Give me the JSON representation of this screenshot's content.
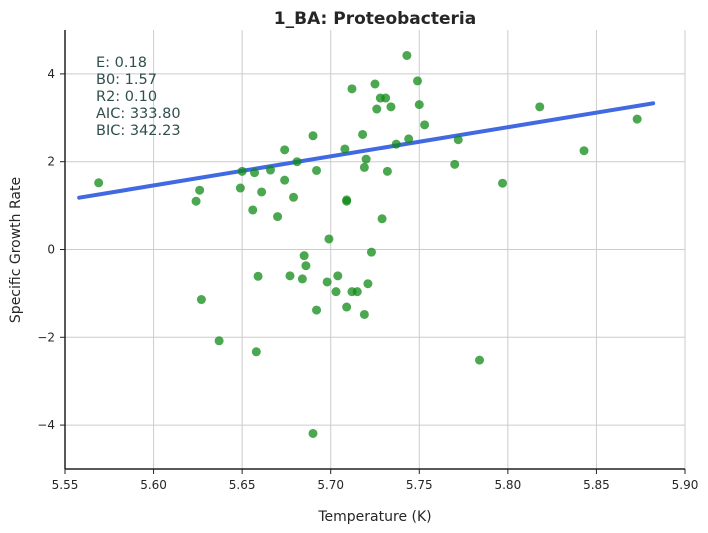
{
  "chart_data": {
    "type": "scatter",
    "title": "1_BA: Proteobacteria",
    "xlabel": "Temperature (K)",
    "ylabel": "Specific Growth Rate",
    "xlim": [
      5.55,
      5.9
    ],
    "ylim": [
      -5,
      5
    ],
    "x_ticks": [
      "5.55",
      "5.60",
      "5.65",
      "5.70",
      "5.75",
      "5.80",
      "5.85",
      "5.90"
    ],
    "y_ticks": [
      "−4",
      "−2",
      "0",
      "2",
      "4"
    ],
    "grid": true,
    "point_color": "#0f8a16",
    "fit_color": "#4169e1",
    "fit_line": {
      "x": [
        5.558,
        5.882
      ],
      "y": [
        1.18,
        3.33
      ]
    },
    "stats": [
      "E:  0.18",
      "B0:  1.57",
      "R2:  0.10",
      "AIC: 333.80",
      "BIC: 342.23"
    ],
    "points": [
      [
        5.569,
        1.52
      ],
      [
        5.624,
        1.1
      ],
      [
        5.626,
        1.35
      ],
      [
        5.627,
        -1.14
      ],
      [
        5.637,
        -2.08
      ],
      [
        5.649,
        1.4
      ],
      [
        5.65,
        1.78
      ],
      [
        5.656,
        0.9
      ],
      [
        5.657,
        1.75
      ],
      [
        5.658,
        -2.33
      ],
      [
        5.659,
        -0.61
      ],
      [
        5.661,
        1.31
      ],
      [
        5.666,
        1.81
      ],
      [
        5.67,
        0.75
      ],
      [
        5.674,
        2.27
      ],
      [
        5.674,
        1.58
      ],
      [
        5.677,
        -0.6
      ],
      [
        5.679,
        1.19
      ],
      [
        5.681,
        2.0
      ],
      [
        5.684,
        -0.67
      ],
      [
        5.685,
        -0.14
      ],
      [
        5.686,
        -0.37
      ],
      [
        5.69,
        2.59
      ],
      [
        5.69,
        -4.19
      ],
      [
        5.692,
        -1.38
      ],
      [
        5.692,
        1.8
      ],
      [
        5.698,
        -0.74
      ],
      [
        5.699,
        0.24
      ],
      [
        5.703,
        -0.96
      ],
      [
        5.704,
        -0.6
      ],
      [
        5.708,
        2.29
      ],
      [
        5.709,
        1.1
      ],
      [
        5.709,
        1.13
      ],
      [
        5.709,
        -1.31
      ],
      [
        5.712,
        3.66
      ],
      [
        5.712,
        -0.96
      ],
      [
        5.715,
        -0.96
      ],
      [
        5.718,
        2.62
      ],
      [
        5.719,
        1.87
      ],
      [
        5.719,
        -1.48
      ],
      [
        5.72,
        2.06
      ],
      [
        5.721,
        -0.78
      ],
      [
        5.723,
        -0.06
      ],
      [
        5.725,
        3.77
      ],
      [
        5.726,
        3.2
      ],
      [
        5.728,
        3.45
      ],
      [
        5.729,
        0.7
      ],
      [
        5.731,
        3.45
      ],
      [
        5.732,
        1.78
      ],
      [
        5.734,
        3.25
      ],
      [
        5.737,
        2.4
      ],
      [
        5.743,
        4.42
      ],
      [
        5.744,
        2.52
      ],
      [
        5.749,
        3.84
      ],
      [
        5.75,
        3.3
      ],
      [
        5.753,
        2.84
      ],
      [
        5.77,
        1.94
      ],
      [
        5.772,
        2.5
      ],
      [
        5.784,
        -2.52
      ],
      [
        5.797,
        1.51
      ],
      [
        5.818,
        3.25
      ],
      [
        5.843,
        2.25
      ],
      [
        5.873,
        2.97
      ]
    ]
  }
}
